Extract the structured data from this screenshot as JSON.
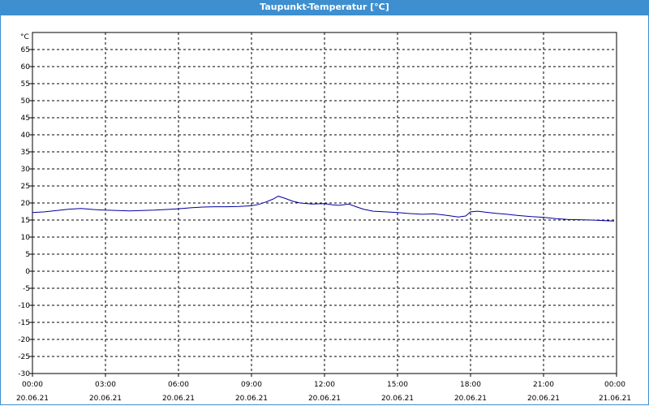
{
  "window": {
    "title": "Taupunkt-Temperatur [°C]"
  },
  "chart_data": {
    "type": "line",
    "title": "Taupunkt-Temperatur [°C]",
    "y_unit_label": "°C",
    "ylim": [
      -30,
      70
    ],
    "y_ticks": [
      -30,
      -25,
      -20,
      -15,
      -10,
      -5,
      0,
      5,
      10,
      15,
      20,
      25,
      30,
      35,
      40,
      45,
      50,
      55,
      60,
      65
    ],
    "x_range": [
      "2021-06-20 00:00",
      "2021-06-21 00:00"
    ],
    "x_ticks": [
      {
        "time": "00:00",
        "date": "20.06.21",
        "hour": 0
      },
      {
        "time": "03:00",
        "date": "20.06.21",
        "hour": 3
      },
      {
        "time": "06:00",
        "date": "20.06.21",
        "hour": 6
      },
      {
        "time": "09:00",
        "date": "20.06.21",
        "hour": 9
      },
      {
        "time": "12:00",
        "date": "20.06.21",
        "hour": 12
      },
      {
        "time": "15:00",
        "date": "20.06.21",
        "hour": 15
      },
      {
        "time": "18:00",
        "date": "20.06.21",
        "hour": 18
      },
      {
        "time": "21:00",
        "date": "20.06.21",
        "hour": 21
      },
      {
        "time": "00:00",
        "date": "21.06.21",
        "hour": 24
      }
    ],
    "grid": true,
    "series_color": "#0000a0",
    "series": [
      {
        "x_hours": [
          0,
          0.5,
          1,
          1.5,
          2,
          2.5,
          3,
          3.5,
          4,
          4.5,
          5,
          5.5,
          6,
          6.5,
          7,
          7.5,
          8,
          8.5,
          9,
          9.3,
          9.6,
          9.9,
          10.1,
          10.4,
          10.7,
          11,
          11.5,
          12,
          12.3,
          12.6,
          13,
          13.3,
          13.6,
          14,
          14.5,
          15,
          15.5,
          16,
          16.5,
          17,
          17.5,
          17.8,
          18,
          18.3,
          18.6,
          19,
          19.5,
          20,
          20.5,
          21,
          21.5,
          22,
          22.5,
          23,
          23.5,
          23.9
        ],
        "values": [
          17.2,
          17.4,
          17.8,
          18.2,
          18.4,
          18.1,
          17.9,
          17.8,
          17.7,
          17.8,
          17.9,
          18.1,
          18.3,
          18.6,
          18.8,
          18.9,
          18.9,
          19.0,
          19.2,
          19.6,
          20.3,
          21.2,
          22.0,
          21.3,
          20.5,
          20.0,
          19.7,
          19.8,
          19.5,
          19.3,
          19.7,
          18.9,
          18.2,
          17.6,
          17.4,
          17.2,
          16.9,
          16.7,
          16.8,
          16.4,
          15.9,
          16.2,
          17.4,
          17.6,
          17.3,
          17.0,
          16.7,
          16.3,
          16.0,
          15.8,
          15.4,
          15.2,
          15.1,
          15.0,
          14.8,
          14.7
        ]
      }
    ]
  }
}
